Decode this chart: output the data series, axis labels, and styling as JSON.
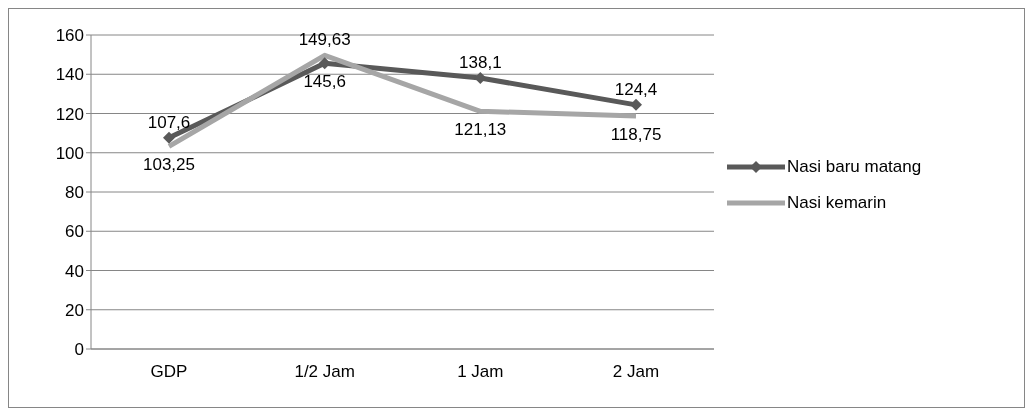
{
  "chart_data": {
    "type": "line",
    "categories": [
      "GDP",
      "1/2 Jam",
      "1 Jam",
      "2 Jam"
    ],
    "series": [
      {
        "name": "Nasi baru matang",
        "color": "#595959",
        "marker": "diamond",
        "values": [
          107.6,
          145.6,
          138.1,
          124.4
        ],
        "value_labels": [
          "107,6",
          "145,6",
          "138,1",
          "124,4"
        ]
      },
      {
        "name": "Nasi kemarin",
        "color": "#a6a6a6",
        "marker": "none",
        "values": [
          103.25,
          149.63,
          121.13,
          118.75
        ],
        "value_labels": [
          "103,25",
          "149,63",
          "121,13",
          "118,75"
        ]
      }
    ],
    "ylim": [
      0,
      160
    ],
    "yticks": [
      0,
      20,
      40,
      60,
      80,
      100,
      120,
      140,
      160
    ],
    "grid": "y",
    "legend": "right"
  }
}
